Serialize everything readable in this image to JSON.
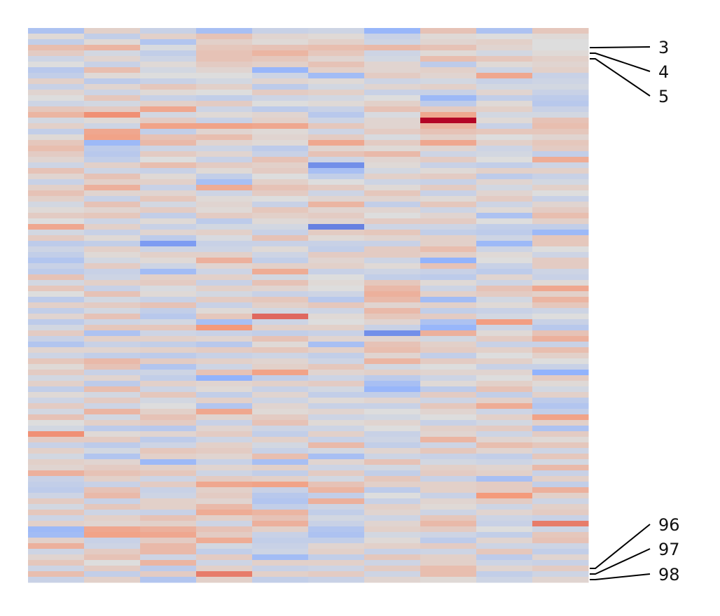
{
  "chart_data": {
    "type": "heatmap",
    "n_rows": 100,
    "n_cols": 10,
    "colormap": "coolwarm",
    "value_range": [
      -3,
      3
    ],
    "values": [
      [
        -0.9,
        0.3,
        -0.4,
        -1.0,
        -0.4,
        -0.3,
        -1.3,
        0.6,
        -0.9,
        0.5
      ],
      [
        0.1,
        -0.5,
        0.3,
        0.6,
        0.2,
        0.1,
        -0.4,
        0.1,
        0.0,
        0.1
      ],
      [
        -0.5,
        0.1,
        -0.8,
        0.3,
        0.1,
        0.3,
        -0.3,
        0.2,
        0.3,
        0.0
      ],
      [
        0.7,
        0.9,
        -0.1,
        0.5,
        0.6,
        0.7,
        0.8,
        0.6,
        0.2,
        0.0
      ],
      [
        0.4,
        -0.2,
        -0.5,
        0.6,
        0.9,
        0.5,
        -0.3,
        0.1,
        -0.2,
        0.1
      ],
      [
        -0.3,
        0.2,
        -0.3,
        0.6,
        0.5,
        0.2,
        -0.2,
        0.7,
        0.5,
        0.3
      ],
      [
        0.0,
        -0.4,
        0.1,
        0.4,
        0.3,
        0.6,
        0.2,
        -0.6,
        0.1,
        0.2
      ],
      [
        -0.7,
        0.7,
        -0.2,
        0.2,
        -1.3,
        0.3,
        0.2,
        0.3,
        -0.3,
        0.3
      ],
      [
        -0.5,
        0.1,
        0.0,
        0.0,
        -0.3,
        -1.1,
        0.4,
        0.2,
        1.2,
        -0.4
      ],
      [
        0.3,
        -0.6,
        -0.4,
        -0.2,
        0.2,
        0.1,
        -0.3,
        -0.2,
        -0.4,
        -0.3
      ],
      [
        -0.4,
        0.2,
        0.5,
        0.3,
        -0.6,
        -0.2,
        0.2,
        0.3,
        -0.2,
        -0.2
      ],
      [
        0.2,
        -0.3,
        0.1,
        0.0,
        0.4,
        0.3,
        -0.4,
        -0.4,
        0.2,
        -0.4
      ],
      [
        0.0,
        0.5,
        -0.4,
        -0.5,
        -0.3,
        -0.2,
        0.0,
        -1.2,
        -0.5,
        -0.6
      ],
      [
        -0.3,
        -0.2,
        0.3,
        0.4,
        0.0,
        0.1,
        0.3,
        -0.6,
        0.1,
        -0.7
      ],
      [
        0.5,
        0.4,
        1.2,
        -0.3,
        -0.6,
        -0.4,
        0.6,
        0.4,
        0.3,
        -0.4
      ],
      [
        0.9,
        1.6,
        -0.2,
        0.1,
        0.2,
        -0.7,
        -0.1,
        1.2,
        -0.2,
        -0.2
      ],
      [
        -0.2,
        0.1,
        0.4,
        -0.4,
        0.3,
        -0.3,
        0.2,
        3.0,
        0.1,
        0.6
      ],
      [
        0.3,
        -0.3,
        1.3,
        1.3,
        1.2,
        0.5,
        0.2,
        0.9,
        -0.4,
        0.7
      ],
      [
        -0.5,
        1.2,
        -0.5,
        0.2,
        0.1,
        -0.3,
        0.4,
        0.6,
        0.5,
        0.5
      ],
      [
        0.1,
        1.3,
        0.6,
        0.7,
        0.2,
        0.4,
        -0.1,
        0.3,
        0.0,
        0.2
      ],
      [
        0.5,
        -1.2,
        0.8,
        0.2,
        0.1,
        1.2,
        0.4,
        1.2,
        0.3,
        0.5
      ],
      [
        0.7,
        -0.6,
        -0.3,
        -0.3,
        -0.6,
        0.2,
        0.1,
        0.2,
        -0.3,
        0.4
      ],
      [
        0.4,
        -0.7,
        0.4,
        0.2,
        -0.4,
        0.6,
        0.8,
        -0.3,
        -0.2,
        -0.5
      ],
      [
        0.2,
        -0.5,
        0.0,
        -0.4,
        0.6,
        -0.3,
        0.2,
        0.4,
        0.0,
        1.1
      ],
      [
        -0.3,
        0.3,
        0.7,
        0.4,
        0.3,
        -2.0,
        0.1,
        -0.4,
        -0.5,
        -0.3
      ],
      [
        0.6,
        -0.3,
        -0.4,
        0.1,
        0.4,
        -1.0,
        -0.2,
        0.1,
        0.3,
        0.3
      ],
      [
        0.2,
        0.6,
        0.1,
        -0.5,
        0.0,
        -0.5,
        0.3,
        0.4,
        -0.6,
        -0.4
      ],
      [
        -0.4,
        0.3,
        0.3,
        -1.0,
        0.3,
        0.0,
        -0.3,
        -0.4,
        0.2,
        -0.2
      ],
      [
        0.3,
        1.0,
        -0.4,
        1.1,
        0.6,
        0.4,
        0.1,
        0.4,
        -0.2,
        0.3
      ],
      [
        0.6,
        0.2,
        0.2,
        -0.3,
        0.4,
        -0.3,
        0.5,
        -0.4,
        0.2,
        0.0
      ],
      [
        0.3,
        -0.4,
        0.5,
        0.1,
        0.0,
        0.2,
        0.2,
        0.1,
        0.4,
        -0.4
      ],
      [
        -0.2,
        0.6,
        -0.2,
        0.2,
        -0.4,
        0.9,
        -0.5,
        0.5,
        -0.3,
        0.2
      ],
      [
        0.1,
        0.2,
        0.4,
        0.1,
        0.5,
        0.2,
        0.2,
        -0.3,
        0.1,
        0.4
      ],
      [
        0.4,
        0.5,
        -0.5,
        0.4,
        0.3,
        0.4,
        0.0,
        0.2,
        -0.9,
        0.7
      ],
      [
        0.0,
        -0.3,
        0.1,
        -0.6,
        0.1,
        0.2,
        0.4,
        0.4,
        0.0,
        0.3
      ],
      [
        1.2,
        0.3,
        -0.4,
        -0.2,
        -0.2,
        -2.2,
        -0.3,
        -0.3,
        -0.5,
        -0.5
      ],
      [
        -0.2,
        -0.4,
        0.2,
        0.3,
        -0.4,
        0.4,
        0.5,
        -0.5,
        -0.6,
        -1.2
      ],
      [
        0.4,
        0.1,
        -0.6,
        -0.1,
        0.6,
        0.1,
        0.2,
        0.3,
        -0.3,
        0.5
      ],
      [
        -0.6,
        -0.5,
        -1.8,
        -0.4,
        -0.4,
        -0.4,
        -0.4,
        0.3,
        -1.2,
        0.5
      ],
      [
        -0.3,
        0.3,
        -0.3,
        -0.3,
        0.1,
        -0.5,
        0.4,
        0.7,
        -0.3,
        0.0
      ],
      [
        -0.5,
        0.1,
        0.3,
        0.3,
        -0.3,
        0.4,
        0.4,
        0.3,
        0.1,
        -0.3
      ],
      [
        -0.8,
        -0.2,
        0.1,
        1.0,
        -0.5,
        0.2,
        -0.3,
        -1.4,
        0.0,
        0.4
      ],
      [
        -0.4,
        0.4,
        -0.3,
        0.2,
        0.3,
        0.3,
        0.1,
        0.6,
        -0.4,
        0.4
      ],
      [
        -0.6,
        -0.4,
        -1.1,
        -0.3,
        1.1,
        -0.4,
        -0.3,
        -0.4,
        -0.6,
        -0.3
      ],
      [
        0.6,
        -0.3,
        0.3,
        0.3,
        -0.2,
        0.0,
        -0.5,
        -0.6,
        0.2,
        -0.4
      ],
      [
        -0.2,
        0.3,
        0.4,
        -0.4,
        0.6,
        0.1,
        0.5,
        0.1,
        -0.3,
        0.1
      ],
      [
        0.5,
        -0.4,
        -0.1,
        0.3,
        0.2,
        0.0,
        0.8,
        -0.3,
        0.6,
        1.2
      ],
      [
        0.0,
        0.6,
        0.1,
        -0.2,
        -0.4,
        -0.3,
        1.0,
        0.3,
        0.4,
        0.3
      ],
      [
        -0.6,
        -0.2,
        -0.4,
        0.4,
        0.5,
        -0.7,
        0.8,
        -1.1,
        -0.2,
        0.9
      ],
      [
        0.3,
        0.4,
        0.6,
        -0.4,
        0.3,
        0.5,
        0.2,
        0.3,
        0.1,
        0.5
      ],
      [
        -0.5,
        -0.2,
        -0.5,
        0.1,
        -0.2,
        -0.3,
        0.8,
        -0.5,
        -0.4,
        -0.3
      ],
      [
        0.2,
        0.6,
        -0.7,
        0.5,
        2.0,
        0.1,
        0.5,
        0.4,
        -0.2,
        0.0
      ],
      [
        -0.6,
        -0.3,
        -0.2,
        -1.0,
        -0.3,
        0.0,
        0.2,
        -0.9,
        1.4,
        -0.4
      ],
      [
        -0.2,
        0.5,
        0.5,
        1.5,
        0.3,
        0.3,
        -0.4,
        -1.3,
        -0.3,
        -0.7
      ],
      [
        0.4,
        -0.9,
        -0.3,
        -0.4,
        -0.5,
        -0.4,
        -2.0,
        1.0,
        0.1,
        0.6
      ],
      [
        -0.4,
        0.3,
        0.3,
        0.2,
        0.6,
        0.2,
        0.2,
        -0.2,
        0.4,
        1.0
      ],
      [
        -0.8,
        -0.4,
        -0.5,
        -0.7,
        0.1,
        -1.0,
        0.6,
        0.3,
        -0.4,
        -0.4
      ],
      [
        0.2,
        0.2,
        0.3,
        0.4,
        0.5,
        0.3,
        0.7,
        0.4,
        0.3,
        0.7
      ],
      [
        -0.3,
        -0.5,
        -0.6,
        -0.4,
        -0.3,
        -0.5,
        0.2,
        -0.5,
        0.0,
        0.3
      ],
      [
        0.5,
        0.8,
        0.4,
        0.3,
        0.2,
        -0.3,
        0.9,
        0.4,
        0.3,
        0.0
      ],
      [
        0.1,
        0.6,
        -0.8,
        -0.3,
        0.3,
        0.5,
        -0.2,
        0.0,
        -0.4,
        -0.4
      ],
      [
        0.4,
        -0.4,
        -0.3,
        0.6,
        1.3,
        0.2,
        0.3,
        0.2,
        0.2,
        -1.4
      ],
      [
        -0.2,
        0.2,
        -0.5,
        -1.4,
        -0.5,
        -0.3,
        -0.6,
        -0.3,
        0.0,
        0.4
      ],
      [
        0.3,
        -0.6,
        0.3,
        0.2,
        0.3,
        0.4,
        -1.0,
        0.1,
        0.3,
        0.1
      ],
      [
        -0.5,
        0.7,
        -0.3,
        0.1,
        -0.4,
        -0.2,
        -1.3,
        -0.6,
        0.6,
        -0.2
      ],
      [
        0.1,
        -0.2,
        0.5,
        -0.5,
        0.2,
        -0.5,
        -0.5,
        0.4,
        -0.5,
        0.3
      ],
      [
        -0.3,
        0.4,
        -0.2,
        0.3,
        -0.3,
        0.1,
        0.2,
        -0.3,
        0.3,
        -0.6
      ],
      [
        0.4,
        -0.3,
        0.0,
        -0.8,
        0.2,
        -0.4,
        -0.4,
        0.5,
        1.1,
        -0.8
      ],
      [
        -0.2,
        0.9,
        0.3,
        1.2,
        0.1,
        0.2,
        0.0,
        0.2,
        -0.3,
        -0.5
      ],
      [
        0.6,
        -0.2,
        0.6,
        0.2,
        0.4,
        -0.3,
        -0.2,
        0.0,
        0.3,
        1.3
      ],
      [
        0.0,
        0.3,
        0.4,
        -0.4,
        0.6,
        0.1,
        0.2,
        -0.4,
        -0.2,
        0.3
      ],
      [
        -0.2,
        -0.6,
        -0.7,
        0.2,
        -0.3,
        -0.3,
        0.0,
        0.3,
        0.4,
        -0.9
      ],
      [
        1.6,
        0.1,
        0.2,
        0.4,
        -0.5,
        0.3,
        -0.4,
        0.2,
        -0.3,
        0.4
      ],
      [
        0.4,
        0.4,
        -0.6,
        -0.3,
        0.3,
        -0.4,
        -0.3,
        0.9,
        0.2,
        0.1
      ],
      [
        -0.4,
        -0.6,
        -0.3,
        0.3,
        -0.2,
        0.8,
        -0.5,
        -0.3,
        0.7,
        0.5
      ],
      [
        0.3,
        -0.2,
        0.5,
        0.4,
        -0.4,
        -0.2,
        0.2,
        0.5,
        0.2,
        -0.3
      ],
      [
        -0.2,
        -0.8,
        0.3,
        0.2,
        0.7,
        -1.0,
        -0.3,
        -0.4,
        -0.5,
        0.5
      ],
      [
        0.3,
        0.2,
        -1.2,
        -0.4,
        -1.0,
        0.2,
        0.6,
        -0.2,
        -0.3,
        -0.2
      ],
      [
        0.2,
        0.4,
        0.3,
        0.2,
        0.3,
        -0.3,
        -0.2,
        0.3,
        0.2,
        0.8
      ],
      [
        1.0,
        0.6,
        0.5,
        -0.3,
        -0.5,
        0.4,
        -0.5,
        0.4,
        0.3,
        -0.4
      ],
      [
        -0.4,
        0.3,
        -0.3,
        0.4,
        0.3,
        -0.2,
        0.5,
        -0.4,
        -1.0,
        0.3
      ],
      [
        -0.5,
        -0.4,
        0.4,
        1.2,
        1.3,
        0.6,
        0.3,
        0.3,
        0.4,
        -0.5
      ],
      [
        -0.6,
        0.6,
        -0.4,
        0.3,
        -0.4,
        0.9,
        -0.6,
        0.3,
        0.4,
        1.0
      ],
      [
        -0.3,
        0.8,
        -0.3,
        0.4,
        -0.7,
        -0.5,
        0.0,
        -0.4,
        1.5,
        0.3
      ],
      [
        0.4,
        -0.4,
        0.3,
        0.2,
        -0.8,
        1.0,
        -0.4,
        0.2,
        0.4,
        -0.3
      ],
      [
        -0.2,
        0.5,
        0.3,
        0.8,
        -0.5,
        -0.3,
        0.3,
        0.1,
        -0.3,
        0.3
      ],
      [
        0.5,
        -0.3,
        -0.4,
        1.1,
        0.9,
        -0.5,
        0.2,
        -0.3,
        0.2,
        0.4
      ],
      [
        -0.3,
        0.3,
        0.6,
        0.3,
        0.6,
        -0.2,
        -0.3,
        0.5,
        -0.3,
        -0.4
      ],
      [
        0.3,
        0.2,
        0.3,
        -0.3,
        1.0,
        -0.4,
        0.2,
        0.8,
        -0.4,
        1.8
      ],
      [
        -1.2,
        1.2,
        1.0,
        0.6,
        0.3,
        -0.8,
        0.3,
        0.4,
        0.0,
        -0.3
      ],
      [
        -1.1,
        1.3,
        1.2,
        0.4,
        -0.4,
        -0.9,
        -0.2,
        -0.3,
        -0.5,
        0.5
      ],
      [
        0.3,
        -0.4,
        0.4,
        1.1,
        -0.5,
        -0.5,
        0.1,
        -0.6,
        0.2,
        0.6
      ],
      [
        1.0,
        -0.3,
        0.8,
        -0.2,
        -0.4,
        0.2,
        0.3,
        0.4,
        -0.3,
        -0.3
      ],
      [
        -0.3,
        0.4,
        0.8,
        -0.5,
        -0.3,
        0.3,
        -0.4,
        -0.3,
        0.5,
        -0.5
      ],
      [
        0.2,
        0.6,
        -0.3,
        0.4,
        -1.1,
        -0.5,
        0.5,
        0.3,
        -0.6,
        0.2
      ],
      [
        0.5,
        0.0,
        0.9,
        -0.3,
        0.3,
        0.3,
        -0.3,
        0.3,
        -0.3,
        -0.4
      ],
      [
        -0.3,
        0.4,
        -0.6,
        0.3,
        -0.4,
        -0.3,
        0.4,
        0.7,
        0.2,
        0.4
      ],
      [
        0.7,
        -0.5,
        0.4,
        1.8,
        0.3,
        0.4,
        -0.3,
        0.7,
        -0.5,
        -0.3
      ],
      [
        -0.4,
        0.3,
        -0.8,
        0.3,
        -0.5,
        -0.4,
        0.2,
        0.1,
        -0.3,
        0.2
      ]
    ],
    "annotated_rows": [
      {
        "label": "3",
        "row": 3
      },
      {
        "label": "4",
        "row": 4
      },
      {
        "label": "5",
        "row": 5
      },
      {
        "label": "96",
        "row": 96
      },
      {
        "label": "97",
        "row": 97
      },
      {
        "label": "98",
        "row": 98
      }
    ]
  }
}
